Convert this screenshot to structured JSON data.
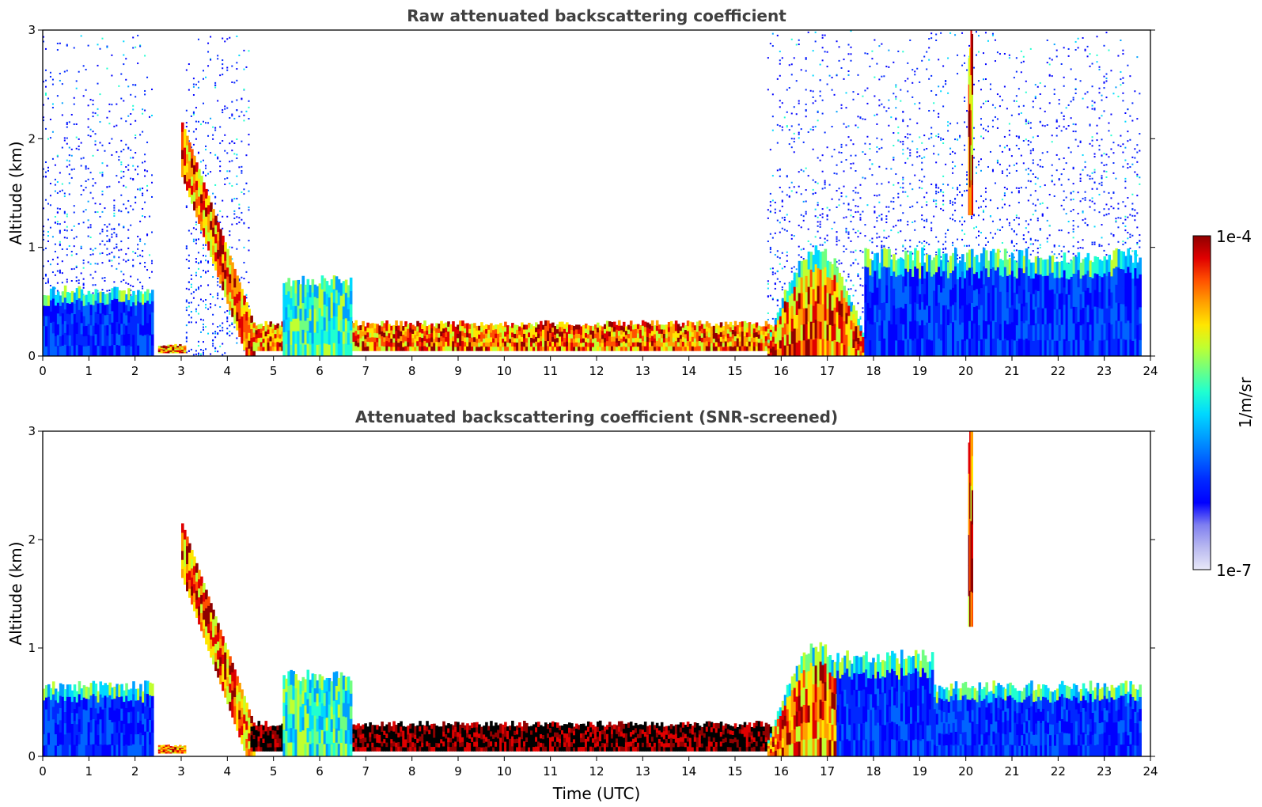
{
  "chart_data": [
    {
      "type": "heatmap",
      "title": "Raw attenuated backscattering coefficient",
      "xlabel": "",
      "ylabel": "Altitude (km)",
      "xlim": [
        0,
        24
      ],
      "ylim": [
        0,
        3
      ],
      "x_ticks": [
        "0",
        "1",
        "2",
        "3",
        "4",
        "5",
        "6",
        "7",
        "8",
        "9",
        "10",
        "11",
        "12",
        "13",
        "14",
        "15",
        "16",
        "17",
        "18",
        "19",
        "20",
        "21",
        "22",
        "23",
        "24"
      ],
      "y_ticks": [
        "0",
        "1",
        "2",
        "3"
      ],
      "features": [
        {
          "kind": "noise_region",
          "x": [
            0,
            2.4
          ],
          "y_top": 3.0,
          "level": "low"
        },
        {
          "kind": "noise_region",
          "x": [
            3.1,
            4.5
          ],
          "y_top": 3.0,
          "level": "low"
        },
        {
          "kind": "noise_region",
          "x": [
            15.7,
            23.8
          ],
          "y_top": 3.0,
          "level": "low"
        },
        {
          "kind": "boundary_layer",
          "x": [
            0,
            2.4
          ],
          "y_top": 0.65,
          "level": "low"
        },
        {
          "kind": "aerosol_layer",
          "x": [
            2.5,
            3.1
          ],
          "y": [
            0.03,
            0.1
          ],
          "level": "high"
        },
        {
          "kind": "cloud_plume",
          "x": [
            3.0,
            4.6
          ],
          "y_start": 2.0,
          "y_end": 0.1,
          "level": "high"
        },
        {
          "kind": "stratus_layer",
          "x": [
            4.5,
            15.8
          ],
          "y": [
            0.05,
            0.3
          ],
          "level": "high"
        },
        {
          "kind": "cloud_top_bumps",
          "x": [
            5.2,
            6.7
          ],
          "y_top": 0.75,
          "level": "medium"
        },
        {
          "kind": "cloud_dome",
          "x": [
            15.7,
            17.8
          ],
          "y_top": 0.9,
          "level": "high"
        },
        {
          "kind": "boundary_layer",
          "x": [
            17.8,
            23.8
          ],
          "y_top": 1.0,
          "level": "low"
        },
        {
          "kind": "streak",
          "x": [
            20.05,
            20.15
          ],
          "y": [
            1.3,
            3.0
          ],
          "level": "high"
        }
      ]
    },
    {
      "type": "heatmap",
      "title": "Attenuated backscattering coefficient (SNR-screened)",
      "xlabel": "Time (UTC)",
      "ylabel": "Altitude (km)",
      "xlim": [
        0,
        24
      ],
      "ylim": [
        0,
        3
      ],
      "x_ticks": [
        "0",
        "1",
        "2",
        "3",
        "4",
        "5",
        "6",
        "7",
        "8",
        "9",
        "10",
        "11",
        "12",
        "13",
        "14",
        "15",
        "16",
        "17",
        "18",
        "19",
        "20",
        "21",
        "22",
        "23",
        "24"
      ],
      "y_ticks": [
        "0",
        "1",
        "2",
        "3"
      ],
      "features": [
        {
          "kind": "boundary_layer",
          "x": [
            0,
            2.4
          ],
          "y_top": 0.7,
          "level": "low"
        },
        {
          "kind": "aerosol_layer",
          "x": [
            2.5,
            3.1
          ],
          "y": [
            0.03,
            0.1
          ],
          "level": "high"
        },
        {
          "kind": "cloud_plume",
          "x": [
            3.0,
            4.6
          ],
          "y_start": 2.0,
          "y_end": 0.1,
          "level": "high"
        },
        {
          "kind": "stratus_layer",
          "x": [
            4.5,
            15.8
          ],
          "y": [
            0.05,
            0.3
          ],
          "level": "saturated"
        },
        {
          "kind": "cloud_top_bumps",
          "x": [
            5.2,
            6.7
          ],
          "y_top": 0.8,
          "level": "medium"
        },
        {
          "kind": "cloud_dome",
          "x": [
            15.7,
            17.8
          ],
          "y_top": 0.95,
          "level": "high"
        },
        {
          "kind": "boundary_layer",
          "x": [
            17.2,
            19.3
          ],
          "y_top": 1.0,
          "level": "low"
        },
        {
          "kind": "boundary_layer",
          "x": [
            19.3,
            23.8
          ],
          "y_top": 0.7,
          "level": "low"
        },
        {
          "kind": "streak",
          "x": [
            20.05,
            20.15
          ],
          "y": [
            1.2,
            3.0
          ],
          "level": "high"
        }
      ]
    }
  ],
  "colorbar": {
    "label": "1/m/sr",
    "top_label": "1e-4",
    "bottom_label": "1e-7",
    "colors": [
      "#e8e8f8",
      "#b8b8f0",
      "#8080f0",
      "#0000ff",
      "#0028ff",
      "#0064ff",
      "#00a0ff",
      "#00d8ff",
      "#20ffd0",
      "#70ff80",
      "#c0ff30",
      "#ffe600",
      "#ffa000",
      "#ff5000",
      "#e00000",
      "#900000"
    ]
  }
}
